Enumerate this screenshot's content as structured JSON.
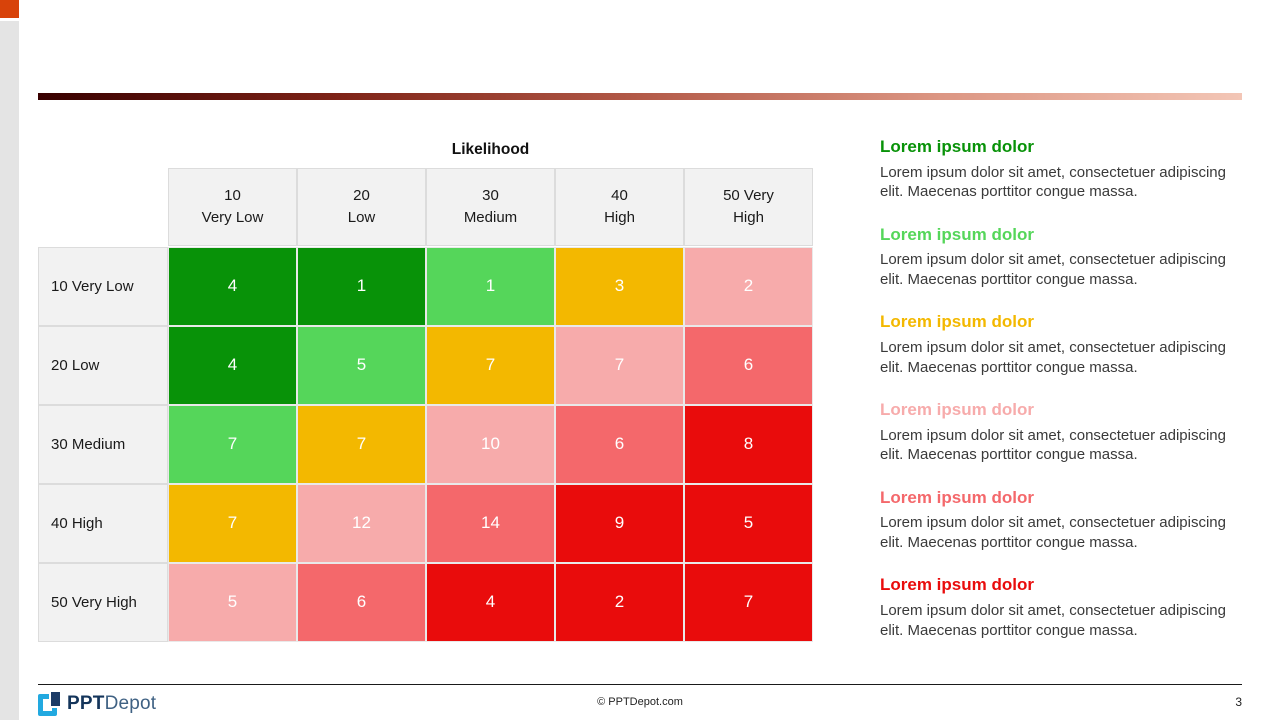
{
  "slide": {
    "corner_color": "#d8430a",
    "left_strip_color": "#e4e4e4",
    "accent_gradient": [
      "#380000",
      "#f3c6b6"
    ]
  },
  "matrix": {
    "title": "Likelihood",
    "palette": {
      "green": "#089208",
      "lightgreen": "#55d65a",
      "amber": "#f3b800",
      "pink": "#f7abab",
      "salmon": "#f4686b",
      "red": "#e90c0c"
    },
    "columns": [
      {
        "line1": "10",
        "line2": "Very Low"
      },
      {
        "line1": "20",
        "line2": "Low"
      },
      {
        "line1": "30",
        "line2": "Medium"
      },
      {
        "line1": "40",
        "line2": "High"
      },
      {
        "line1": "50 Very",
        "line2": "High"
      }
    ],
    "rows": [
      {
        "label": "10 Very Low",
        "cells": [
          {
            "value": "4",
            "color": "green"
          },
          {
            "value": "1",
            "color": "green"
          },
          {
            "value": "1",
            "color": "lightgreen"
          },
          {
            "value": "3",
            "color": "amber"
          },
          {
            "value": "2",
            "color": "pink"
          }
        ]
      },
      {
        "label": "20 Low",
        "cells": [
          {
            "value": "4",
            "color": "green"
          },
          {
            "value": "5",
            "color": "lightgreen"
          },
          {
            "value": "7",
            "color": "amber"
          },
          {
            "value": "7",
            "color": "pink"
          },
          {
            "value": "6",
            "color": "salmon"
          }
        ]
      },
      {
        "label": "30 Medium",
        "cells": [
          {
            "value": "7",
            "color": "lightgreen"
          },
          {
            "value": "7",
            "color": "amber"
          },
          {
            "value": "10",
            "color": "pink"
          },
          {
            "value": "6",
            "color": "salmon"
          },
          {
            "value": "8",
            "color": "red"
          }
        ]
      },
      {
        "label": "40 High",
        "cells": [
          {
            "value": "7",
            "color": "amber"
          },
          {
            "value": "12",
            "color": "pink"
          },
          {
            "value": "14",
            "color": "salmon"
          },
          {
            "value": "9",
            "color": "red"
          },
          {
            "value": "5",
            "color": "red"
          }
        ]
      },
      {
        "label": "50 Very High",
        "cells": [
          {
            "value": "5",
            "color": "pink"
          },
          {
            "value": "6",
            "color": "salmon"
          },
          {
            "value": "4",
            "color": "red"
          },
          {
            "value": "2",
            "color": "red"
          },
          {
            "value": "7",
            "color": "red"
          }
        ]
      }
    ]
  },
  "chart_data": {
    "type": "heatmap",
    "title": "Likelihood",
    "x_categories": [
      "10 Very Low",
      "20 Low",
      "30 Medium",
      "40 High",
      "50 Very High"
    ],
    "y_categories": [
      "10 Very Low",
      "20 Low",
      "30 Medium",
      "40 High",
      "50 Very High"
    ],
    "values": [
      [
        4,
        1,
        1,
        3,
        2
      ],
      [
        4,
        5,
        7,
        7,
        6
      ],
      [
        7,
        7,
        10,
        6,
        8
      ],
      [
        7,
        12,
        14,
        9,
        5
      ],
      [
        5,
        6,
        4,
        2,
        7
      ]
    ],
    "cell_colors": [
      [
        "green",
        "green",
        "lightgreen",
        "amber",
        "pink"
      ],
      [
        "green",
        "lightgreen",
        "amber",
        "pink",
        "salmon"
      ],
      [
        "lightgreen",
        "amber",
        "pink",
        "salmon",
        "red"
      ],
      [
        "amber",
        "pink",
        "salmon",
        "red",
        "red"
      ],
      [
        "pink",
        "salmon",
        "red",
        "red",
        "red"
      ]
    ],
    "color_hex": {
      "green": "#089208",
      "lightgreen": "#55d65a",
      "amber": "#f3b800",
      "pink": "#f7abab",
      "salmon": "#f4686b",
      "red": "#e90c0c"
    },
    "legend_position": "none",
    "grid": true
  },
  "right_panel": {
    "sections": [
      {
        "heading": "Lorem ipsum dolor",
        "color": "#089208",
        "body": "Lorem ipsum dolor sit amet, consectetuer adipiscing elit. Maecenas porttitor congue massa."
      },
      {
        "heading": "Lorem ipsum dolor",
        "color": "#55d65a",
        "body": "Lorem ipsum dolor sit amet, consectetuer adipiscing elit. Maecenas porttitor congue massa."
      },
      {
        "heading": "Lorem ipsum dolor",
        "color": "#f3b800",
        "body": "Lorem ipsum dolor sit amet, consectetuer adipiscing elit. Maecenas porttitor congue massa."
      },
      {
        "heading": "Lorem ipsum dolor",
        "color": "#f7abab",
        "body": "Lorem ipsum dolor sit amet, consectetuer adipiscing elit. Maecenas porttitor congue massa."
      },
      {
        "heading": "Lorem ipsum dolor",
        "color": "#f4686b",
        "body": "Lorem ipsum dolor sit amet, consectetuer adipiscing elit. Maecenas porttitor congue massa."
      },
      {
        "heading": "Lorem ipsum dolor",
        "color": "#e90c0c",
        "body": "Lorem ipsum dolor sit amet, consectetuer adipiscing elit. Maecenas porttitor congue massa."
      }
    ]
  },
  "footer": {
    "logo_bold": "PPT",
    "logo_light": "Depot",
    "copyright": "© PPTDepot.com",
    "page_number": "3"
  }
}
